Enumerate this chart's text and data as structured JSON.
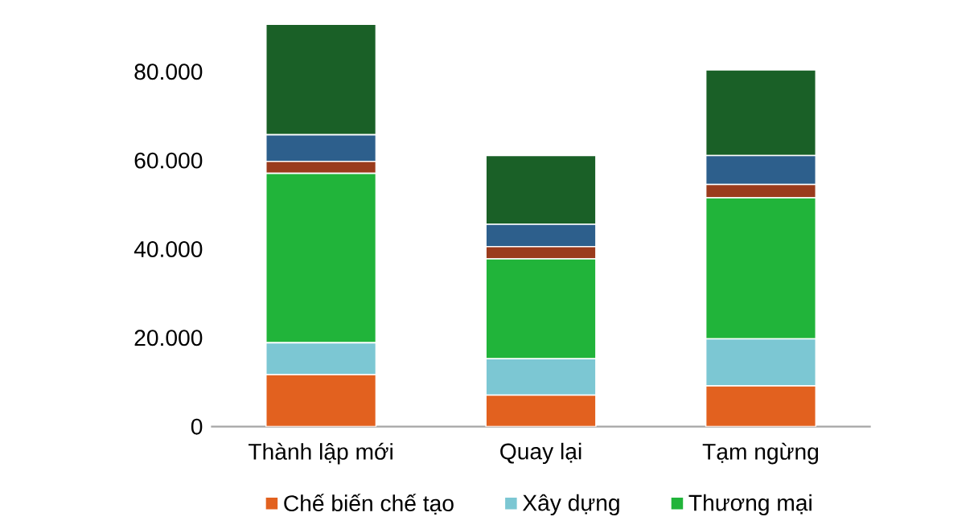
{
  "chart_data": {
    "type": "bar",
    "stacked": true,
    "legend": "bottom",
    "categories": [
      "Thành lập mới",
      "Quay lại",
      "Tạm ngừng"
    ],
    "ylim": [
      0,
      92000
    ],
    "yticks": [
      {
        "value": 0,
        "label": "0"
      },
      {
        "value": 20000,
        "label": "20.000"
      },
      {
        "value": 40000,
        "label": "40.000"
      },
      {
        "value": 60000,
        "label": "60.000"
      },
      {
        "value": 80000,
        "label": "80.000"
      }
    ],
    "series": [
      {
        "name": "Chế biến chế tạo",
        "color": "#e2611f",
        "values": [
          11700,
          7100,
          9200
        ]
      },
      {
        "name": "Xây dựng",
        "color": "#7cc7d3",
        "values": [
          7200,
          8200,
          10600
        ]
      },
      {
        "name": "Thương mại",
        "color": "#21b43a",
        "values": [
          38200,
          22500,
          31800
        ]
      },
      {
        "color": "#9a3b1c",
        "values": [
          2700,
          2800,
          3000
        ]
      },
      {
        "color": "#2d5f8c",
        "values": [
          6000,
          5000,
          6500
        ]
      },
      {
        "color": "#1a6027",
        "values": [
          24900,
          15500,
          19300
        ]
      }
    ]
  }
}
